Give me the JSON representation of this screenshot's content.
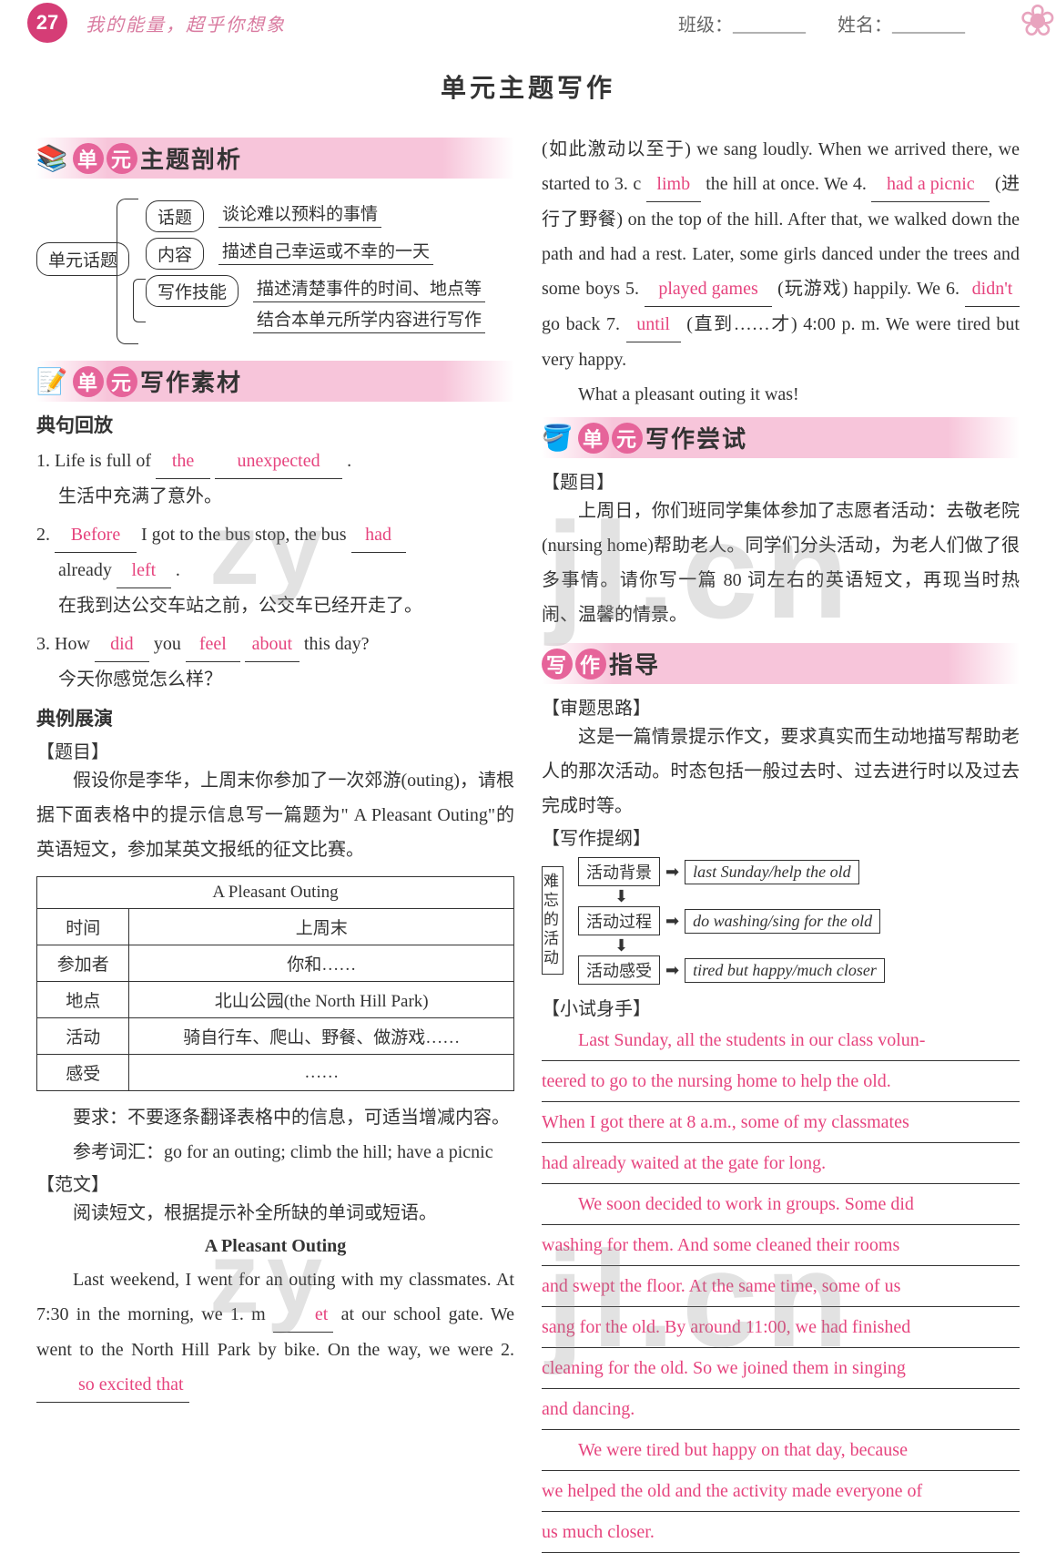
{
  "header": {
    "page_number": "27",
    "motto": "我的能量，超乎你想象",
    "class_label": "班级：",
    "name_label": "姓名："
  },
  "main_title": "单元主题写作",
  "colors": {
    "accent": "#e6447e",
    "pill_bg": "#e6649a",
    "band_bg": "#f7c5da",
    "fill_text": "#e6447e"
  },
  "sections": {
    "analysis": {
      "pill": [
        "单",
        "元"
      ],
      "title": "主题剖析"
    },
    "material": {
      "pill": [
        "单",
        "元"
      ],
      "title": "写作素材"
    },
    "attempt": {
      "pill": [
        "单",
        "元"
      ],
      "title": "写作尝试"
    },
    "guide": {
      "pill": [
        "写",
        "作"
      ],
      "title": "指导"
    }
  },
  "topic_tree": {
    "root": "单元话题",
    "branches": [
      {
        "label": "话题",
        "desc": [
          "谈论难以预料的事情"
        ]
      },
      {
        "label": "内容",
        "desc": [
          "描述自己幸运或不幸的一天"
        ]
      },
      {
        "label": "写作技能",
        "desc": [
          "描述清楚事件的时间、地点等",
          "结合本单元所学内容进行写作"
        ]
      }
    ]
  },
  "playback_head": "典句回放",
  "sentences": [
    {
      "pre": "1. Life is full of ",
      "fills": [
        "the",
        "unexpected"
      ],
      "post": ".",
      "cn": "生活中充满了意外。"
    },
    {
      "pre": "2. ",
      "fills": [
        "Before"
      ],
      "mid1": " I got to the bus stop, the bus ",
      "fills2": [
        "had"
      ],
      "line2_pre": "already ",
      "fills3": [
        "left"
      ],
      "line2_post": ".",
      "cn": "在我到达公交车站之前，公交车已经开走了。"
    },
    {
      "pre": "3. How ",
      "fills": [
        "did"
      ],
      "mid1": " you ",
      "fills2": [
        "feel"
      ],
      "mid2": " ",
      "fills3": [
        "about"
      ],
      "post": " this day?",
      "cn": "今天你感觉怎么样？"
    }
  ],
  "example_head": "典例展演",
  "topic_label": "【题目】",
  "example_intro": "假设你是李华，上周末你参加了一次郊游(outing)，请根据下面表格中的提示信息写一篇题为\" A Pleasant Outing\"的英语短文，参加某英文报纸的征文比赛。",
  "table": {
    "caption": "A Pleasant Outing",
    "rows": [
      [
        "时间",
        "上周末"
      ],
      [
        "参加者",
        "你和……"
      ],
      [
        "地点",
        "北山公园(the North Hill Park)"
      ],
      [
        "活动",
        "骑自行车、爬山、野餐、做游戏……"
      ],
      [
        "感受",
        "……"
      ]
    ]
  },
  "requirements": "要求：不要逐条翻译表格中的信息，可适当增减内容。",
  "ref_words": "参考词汇：go for an outing; climb the hill; have a picnic",
  "model_label": "【范文】",
  "model_instr": "阅读短文，根据提示补全所缺的单词或短语。",
  "essay_title": "A Pleasant Outing",
  "essay": {
    "p_left": "Last weekend, I went for an outing with my classmates. At 7:30 in the morning, we 1. m",
    "fill1": "et",
    "p_left2": "at our school gate. We went to the North Hill Park by bike. On the way, we were 2. ",
    "fill2": "so excited that",
    "p_right_1": "(如此激动以至于) we sang loudly. When we arrived there, we started to 3. c",
    "fill3": "limb",
    "p_right_2": " the hill at once. We 4. ",
    "fill4": "had a picnic",
    "p_right_3": " (进行了野餐) on the top of the hill. After that, we walked down the path and had a rest. Later, some girls danced under the trees and some boys 5. ",
    "fill5": "played games",
    "p_right_4": " (玩游戏) happily. We 6. ",
    "fill6": "didn't",
    "p_right_5": " go back 7. ",
    "fill7": "until",
    "p_right_6": " (直到……才) 4:00 p. m. We were tired but very happy.",
    "p_right_7": "What a pleasant outing it was!"
  },
  "attempt_topic_label": "【题目】",
  "attempt_intro": "上周日，你们班同学集体参加了志愿者活动：去敬老院(nursing home)帮助老人。同学们分头活动，为老人们做了很多事情。请你写一篇 80 词左右的英语短文，再现当时热闹、温馨的情景。",
  "guide_think_label": "【审题思路】",
  "guide_think": "这是一篇情景提示作文，要求真实而生动地描写帮助老人的那次活动。时态包括一般过去时、过去进行时以及过去完成时等。",
  "outline_label": "【写作提纲】",
  "outline_vlabel": "难忘的活动",
  "outline": [
    {
      "cn": "活动背景",
      "en": "last Sunday/help the old"
    },
    {
      "cn": "活动过程",
      "en": "do washing/sing for the old"
    },
    {
      "cn": "活动感受",
      "en": "tired but happy/much closer"
    }
  ],
  "try_label": "【小试身手】",
  "student_essay": [
    "Last Sunday, all the students in our class volun-",
    "teered to go to the nursing home to help the old.",
    "When I got there at 8 a.m., some of my classmates",
    "had already waited at the gate for long.",
    "We soon decided to work in groups. Some did",
    "washing for them. And some cleaned their rooms",
    "and swept the floor. At the same time, some of us",
    "sang for the old. By around 11:00, we had finished",
    "cleaning for the old. So we joined them in singing",
    "and dancing.",
    "We were tired but happy on that day, because",
    "we helped the old and the activity made everyone of",
    "us much closer."
  ]
}
